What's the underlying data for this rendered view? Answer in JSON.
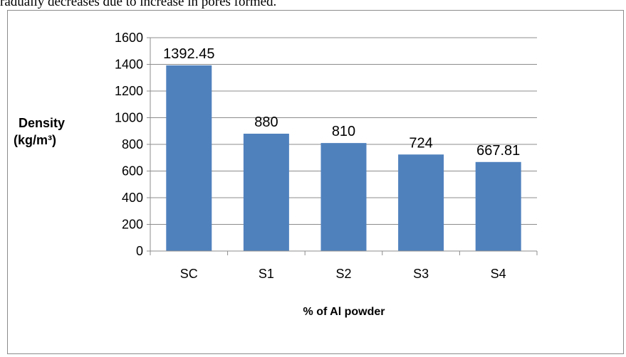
{
  "page": {
    "top_text": "radually decreases due to increase in pores formed."
  },
  "colors": {
    "bar": "#4f81bd",
    "grid": "#8c8c8c",
    "axis": "#8c8c8c"
  },
  "chart_data": {
    "type": "bar",
    "categories": [
      "SC",
      "S1",
      "S2",
      "S3",
      "S4"
    ],
    "values": [
      1392.45,
      880,
      810,
      724,
      667.81
    ],
    "data_labels": [
      "1392.45",
      "880",
      "810",
      "724",
      "667.81"
    ],
    "title": "",
    "xlabel": "% of Al powder",
    "ylabel_line1": "Density",
    "ylabel_line2": "(kg/m³)",
    "ylim": [
      0,
      1600
    ],
    "yticks": [
      0,
      200,
      400,
      600,
      800,
      1000,
      1200,
      1400,
      1600
    ],
    "grid": true,
    "legend": "none"
  }
}
